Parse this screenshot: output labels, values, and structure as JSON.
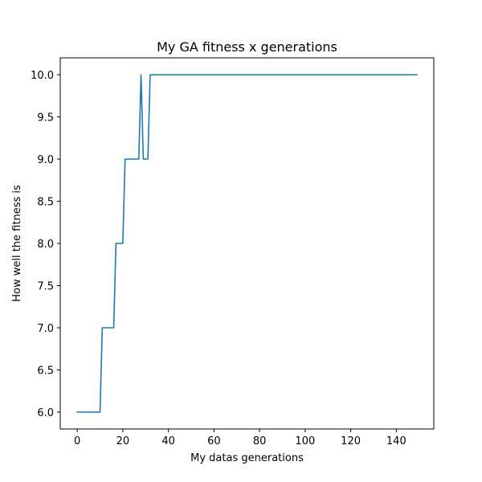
{
  "chart_data": {
    "type": "line",
    "title": "My GA fitness x generations",
    "xlabel": "My datas generations",
    "ylabel": "How well the fitness is",
    "xlim": [
      -7.45,
      156.45
    ],
    "ylim": [
      5.8,
      10.2
    ],
    "xticks": [
      0,
      20,
      40,
      60,
      80,
      100,
      120,
      140
    ],
    "yticks": [
      6.0,
      6.5,
      7.0,
      7.5,
      8.0,
      8.5,
      9.0,
      9.5,
      10.0
    ],
    "ytick_labels": [
      "6.0",
      "6.5",
      "7.0",
      "7.5",
      "8.0",
      "8.5",
      "9.0",
      "9.5",
      "10.0"
    ],
    "grid": false,
    "series": [
      {
        "color": "#1f77b4",
        "x": [
          0,
          10,
          11,
          16,
          17,
          20,
          21,
          27,
          28,
          29,
          31,
          32,
          149
        ],
        "y": [
          6,
          6,
          7,
          7,
          8,
          8,
          9,
          9,
          10,
          9,
          9,
          10,
          10
        ]
      }
    ]
  }
}
